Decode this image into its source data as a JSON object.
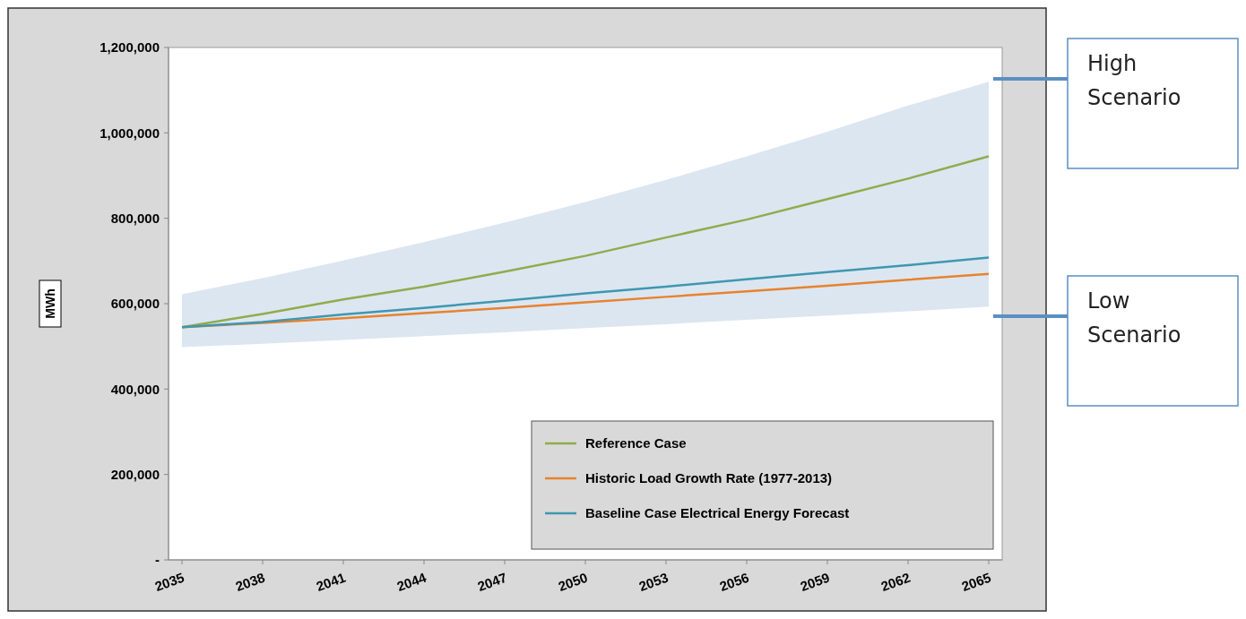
{
  "chart_data": {
    "type": "line",
    "ylabel": "MWh",
    "x": [
      2035,
      2038,
      2041,
      2044,
      2047,
      2050,
      2053,
      2056,
      2059,
      2062,
      2065
    ],
    "series": [
      {
        "name": "Reference Case",
        "color": "#8fac4c",
        "values": [
          545000,
          576000,
          610000,
          640000,
          675000,
          712000,
          755000,
          797000,
          845000,
          893000,
          945000
        ]
      },
      {
        "name": "Historic Load Growth Rate (1977-2013)",
        "color": "#e8822e",
        "values": [
          545000,
          555000,
          566000,
          578000,
          590000,
          603000,
          616000,
          629000,
          642000,
          656000,
          670000
        ]
      },
      {
        "name": "Baseline Case Electrical Energy Forecast",
        "color": "#3f97b0",
        "values": [
          545000,
          557000,
          575000,
          590000,
          607000,
          624000,
          640000,
          657000,
          674000,
          690000,
          708000
        ],
        "lower": [
          498000,
          506000,
          515000,
          524000,
          533000,
          543000,
          552000,
          562000,
          572000,
          582000,
          593000
        ],
        "upper": [
          622000,
          660000,
          701000,
          744000,
          790000,
          838000,
          890000,
          945000,
          1003000,
          1064000,
          1120000
        ]
      }
    ],
    "xlim": [
      2034.5,
      2065.5
    ],
    "xticks": [
      2035,
      2038,
      2041,
      2044,
      2047,
      2050,
      2053,
      2056,
      2059,
      2062,
      2065
    ],
    "ylim": [
      0,
      1200000
    ],
    "yticks": [
      {
        "value": 0,
        "label": "-"
      },
      {
        "value": 200000,
        "label": "200,000"
      },
      {
        "value": 400000,
        "label": "400,000"
      },
      {
        "value": 600000,
        "label": "600,000"
      },
      {
        "value": 800000,
        "label": "800,000"
      },
      {
        "value": 1000000,
        "label": "1,000,000"
      },
      {
        "value": 1200000,
        "label": "1,200,000"
      }
    ],
    "grid": false,
    "legend": "bottom right",
    "marker": "none",
    "line_style": "solid",
    "annotations": [
      "High Scenario",
      "Low Scenario"
    ]
  }
}
